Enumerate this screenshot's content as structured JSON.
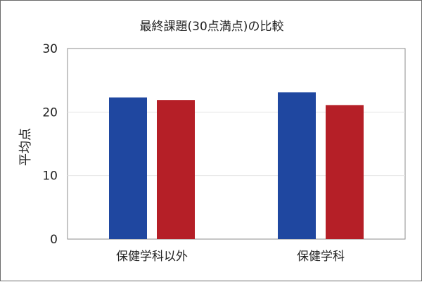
{
  "chart_data": {
    "type": "bar",
    "title": "最終課題(30点満点)の比較",
    "xlabel": "",
    "ylabel": "平均点",
    "ylim": [
      0,
      30
    ],
    "yticks": [
      0,
      10,
      20,
      30
    ],
    "grid": true,
    "legend": "none",
    "categories": [
      "保健学科以外",
      "保健学科"
    ],
    "series": [
      {
        "color": "#1f47a0",
        "values": [
          22.3,
          23.1
        ]
      },
      {
        "color": "#b51f27",
        "values": [
          21.9,
          21.1
        ]
      }
    ]
  }
}
